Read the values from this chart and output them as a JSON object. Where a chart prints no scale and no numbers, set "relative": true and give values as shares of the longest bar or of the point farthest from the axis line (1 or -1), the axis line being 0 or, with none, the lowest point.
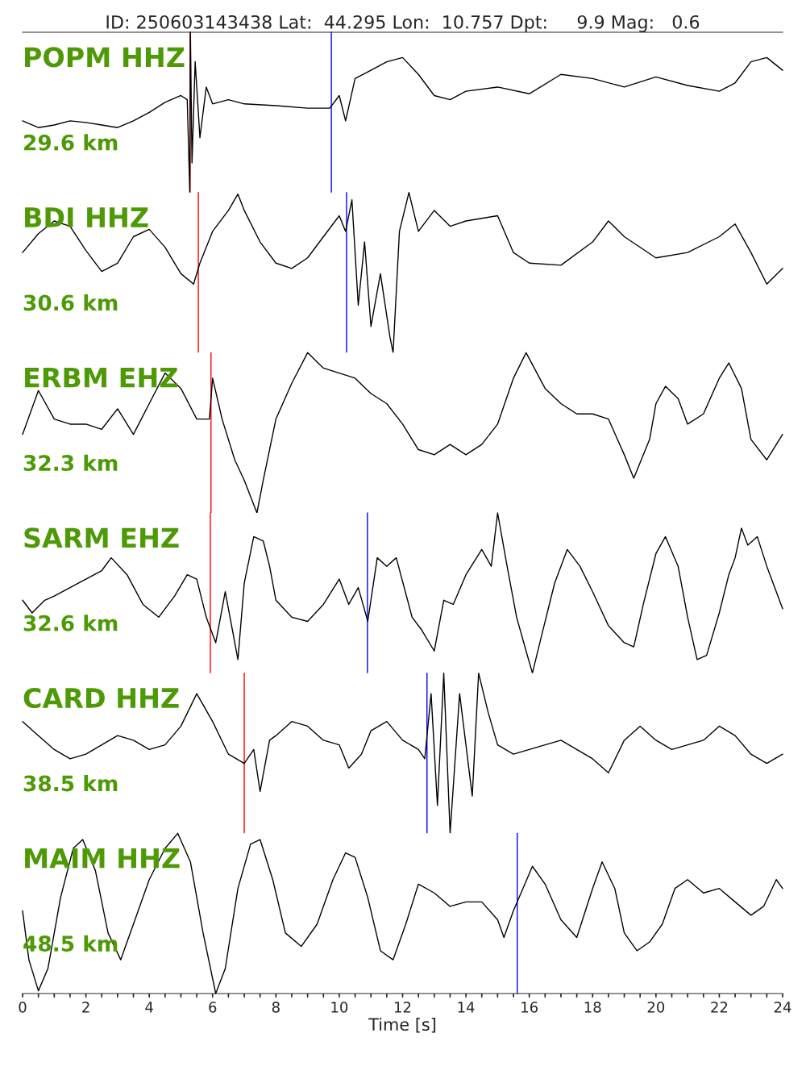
{
  "chart_data": [
    {
      "type": "line",
      "title": "ID: 250603143438 Lat:  44.295 Lon:  10.757 Dpt:     9.9 Mag:   0.6",
      "relative": true,
      "xlim": [
        0,
        24
      ],
      "tick_labels": false,
      "annotations": [
        "POPM HHZ",
        "29.6 km"
      ],
      "x": [
        0,
        0.5,
        1,
        1.5,
        2,
        2.5,
        3,
        3.5,
        4,
        4.5,
        5,
        5.2,
        5.28,
        5.3,
        5.35,
        5.45,
        5.6,
        5.8,
        6,
        6.5,
        7,
        8,
        9,
        9.7,
        10,
        10.2,
        10.5,
        11,
        11.5,
        12,
        12.5,
        13,
        13.5,
        14,
        15,
        16,
        17,
        18,
        19,
        20,
        21,
        22,
        22.5,
        23,
        23.5,
        24
      ],
      "series": [
        {
          "color": "#000000",
          "values": [
            0.447,
            0.405,
            0.421,
            0.447,
            0.437,
            0.421,
            0.405,
            0.447,
            0.5,
            0.563,
            0.605,
            0.579,
            0,
            1,
            0.184,
            0.816,
            0.342,
            0.658,
            0.553,
            0.579,
            0.553,
            0.542,
            0.526,
            0.526,
            0.605,
            0.447,
            0.711,
            0.763,
            0.816,
            0.842,
            0.737,
            0.605,
            0.579,
            0.632,
            0.658,
            0.616,
            0.737,
            0.711,
            0.658,
            0.721,
            0.668,
            0.632,
            0.684,
            0.816,
            0.842,
            0.763
          ]
        }
      ],
      "ref_lines": [
        {
          "axis": "x",
          "value": 5.29,
          "color": "#ff0000"
        },
        {
          "axis": "x",
          "value": 9.75,
          "color": "#0000ff"
        }
      ]
    },
    {
      "type": "line",
      "relative": true,
      "xlim": [
        0,
        24
      ],
      "tick_labels": false,
      "annotations": [
        "BDI HHZ",
        "30.6 km"
      ],
      "x": [
        0,
        0.5,
        1,
        1.5,
        2,
        2.5,
        3,
        3.5,
        4,
        4.5,
        5,
        5.4,
        5.6,
        6,
        6.5,
        6.8,
        7,
        7.5,
        8,
        8.5,
        9,
        9.5,
        10,
        10.2,
        10.4,
        10.6,
        10.8,
        11,
        11.3,
        11.6,
        11.7,
        11.9,
        12.2,
        12.5,
        13,
        13.5,
        14,
        15,
        15.5,
        16,
        17,
        18,
        18.5,
        19,
        20,
        21,
        22,
        22.5,
        23,
        23.5,
        24
      ],
      "series": [
        {
          "color": "#000000",
          "values": [
            0.625,
            0.743,
            0.822,
            0.789,
            0.638,
            0.507,
            0.559,
            0.724,
            0.77,
            0.658,
            0.493,
            0.428,
            0.559,
            0.757,
            0.888,
            0.99,
            0.888,
            0.691,
            0.559,
            0.526,
            0.592,
            0.724,
            0.855,
            0.757,
            0.954,
            0.296,
            0.691,
            0.164,
            0.493,
            0.099,
            0,
            0.757,
            1,
            0.757,
            0.888,
            0.789,
            0.822,
            0.855,
            0.625,
            0.559,
            0.546,
            0.691,
            0.822,
            0.724,
            0.592,
            0.625,
            0.724,
            0.803,
            0.625,
            0.428,
            0.526
          ]
        }
      ],
      "ref_lines": [
        {
          "axis": "x",
          "value": 5.55,
          "color": "#ff0000"
        },
        {
          "axis": "x",
          "value": 10.23,
          "color": "#0000ff"
        }
      ]
    },
    {
      "type": "line",
      "relative": true,
      "xlim": [
        0,
        24
      ],
      "tick_labels": false,
      "annotations": [
        "ERBM EHZ",
        "32.3 km"
      ],
      "x": [
        0,
        0.5,
        1,
        1.5,
        2,
        2.5,
        3,
        3.5,
        4,
        4.5,
        5,
        5.5,
        5.9,
        6,
        6.3,
        6.7,
        7,
        7.4,
        7.6,
        8,
        8.5,
        9,
        9.5,
        10,
        10.5,
        11,
        11.5,
        12,
        12.5,
        13,
        13.5,
        14,
        14.5,
        15,
        15.5,
        15.9,
        16.5,
        17,
        17.5,
        18,
        18.5,
        19,
        19.3,
        19.8,
        20,
        20.3,
        20.7,
        21,
        21.5,
        22,
        22.3,
        22.7,
        23,
        23.5,
        24
      ],
      "series": [
        {
          "color": "#000000",
          "values": [
            0.49,
            0.764,
            0.586,
            0.554,
            0.554,
            0.522,
            0.65,
            0.49,
            0.682,
            0.873,
            0.777,
            0.586,
            0.586,
            0.841,
            0.586,
            0.331,
            0.204,
            0,
            0.204,
            0.586,
            0.809,
            1,
            0.904,
            0.873,
            0.841,
            0.745,
            0.682,
            0.554,
            0.395,
            0.363,
            0.427,
            0.363,
            0.427,
            0.554,
            0.841,
            1,
            0.777,
            0.682,
            0.618,
            0.618,
            0.586,
            0.363,
            0.217,
            0.459,
            0.682,
            0.79,
            0.713,
            0.554,
            0.618,
            0.841,
            0.936,
            0.777,
            0.459,
            0.331,
            0.49
          ]
        }
      ],
      "ref_lines": [
        {
          "axis": "x",
          "value": 5.95,
          "color": "#ff0000"
        }
      ]
    },
    {
      "type": "line",
      "relative": true,
      "xlim": [
        0,
        24
      ],
      "tick_labels": false,
      "annotations": [
        "SARM EHZ",
        "32.6 km"
      ],
      "x": [
        0,
        0.3,
        0.7,
        1,
        1.5,
        2,
        2.5,
        2.8,
        3.3,
        3.8,
        4.3,
        4.8,
        5.2,
        5.5,
        5.8,
        6.1,
        6.4,
        6.8,
        7,
        7.3,
        7.6,
        7.8,
        8,
        8.5,
        9,
        9.5,
        10,
        10.3,
        10.6,
        10.9,
        11.2,
        11.5,
        11.8,
        12.3,
        12.6,
        13,
        13.3,
        13.6,
        14,
        14.5,
        14.8,
        15,
        15.3,
        15.6,
        15.9,
        16.1,
        16.4,
        16.8,
        17.2,
        17.6,
        18,
        18.5,
        19,
        19.3,
        19.6,
        20,
        20.3,
        20.7,
        21,
        21.3,
        21.6,
        22,
        22.3,
        22.5,
        22.7,
        22.9,
        23.2,
        23.5,
        24
      ],
      "series": [
        {
          "color": "#000000",
          "values": [
            0.455,
            0.376,
            0.455,
            0.481,
            0.534,
            0.587,
            0.64,
            0.72,
            0.614,
            0.429,
            0.349,
            0.481,
            0.614,
            0.587,
            0.349,
            0.19,
            0.508,
            0.085,
            0.561,
            0.852,
            0.825,
            0.667,
            0.455,
            0.349,
            0.323,
            0.429,
            0.587,
            0.429,
            0.534,
            0.323,
            0.72,
            0.667,
            0.72,
            0.349,
            0.27,
            0.138,
            0.455,
            0.429,
            0.614,
            0.772,
            0.667,
            1,
            0.667,
            0.349,
            0.138,
            0,
            0.243,
            0.561,
            0.772,
            0.667,
            0.508,
            0.296,
            0.19,
            0.164,
            0.429,
            0.746,
            0.852,
            0.667,
            0.349,
            0.085,
            0.111,
            0.376,
            0.614,
            0.72,
            0.905,
            0.799,
            0.852,
            0.667,
            0.402
          ]
        }
      ],
      "ref_lines": [
        {
          "axis": "x",
          "value": 5.93,
          "color": "#ff0000"
        },
        {
          "axis": "x",
          "value": 10.89,
          "color": "#0000ff"
        }
      ]
    },
    {
      "type": "line",
      "relative": true,
      "xlim": [
        0,
        24
      ],
      "tick_labels": false,
      "annotations": [
        "CARD HHZ",
        "38.5 km"
      ],
      "x": [
        0,
        0.5,
        1,
        1.5,
        2,
        2.5,
        3,
        3.5,
        4,
        4.5,
        5,
        5.5,
        6,
        6.5,
        7,
        7.3,
        7.5,
        7.8,
        8,
        8.5,
        9,
        9.5,
        10,
        10.3,
        10.7,
        11,
        11.5,
        12,
        12.5,
        12.7,
        12.9,
        13.1,
        13.3,
        13.5,
        13.8,
        14.2,
        14.4,
        14.7,
        15,
        15.5,
        16,
        16.5,
        17,
        17.5,
        18,
        18.5,
        19,
        19.5,
        20,
        20.5,
        21,
        21.5,
        22,
        22.5,
        23,
        23.5,
        24
      ],
      "series": [
        {
          "color": "#000000",
          "values": [
            0.698,
            0.61,
            0.523,
            0.465,
            0.494,
            0.552,
            0.61,
            0.581,
            0.523,
            0.552,
            0.669,
            0.872,
            0.698,
            0.494,
            0.436,
            0.523,
            0.262,
            0.581,
            0.61,
            0.698,
            0.669,
            0.581,
            0.552,
            0.407,
            0.494,
            0.64,
            0.698,
            0.581,
            0.523,
            0.465,
            0.872,
            0.174,
            1,
            0,
            0.872,
            0.233,
            1,
            0.756,
            0.552,
            0.494,
            0.523,
            0.552,
            0.581,
            0.523,
            0.465,
            0.378,
            0.581,
            0.669,
            0.581,
            0.523,
            0.552,
            0.581,
            0.669,
            0.61,
            0.494,
            0.436,
            0.494
          ]
        }
      ],
      "ref_lines": [
        {
          "axis": "x",
          "value": 7.0,
          "color": "#ff0000"
        },
        {
          "axis": "x",
          "value": 12.77,
          "color": "#0000ff"
        }
      ]
    },
    {
      "type": "line",
      "relative": true,
      "xlim": [
        0,
        24
      ],
      "tick_labels": "x",
      "xlabel": "Time [s]",
      "annotations": [
        "MAIM HHZ",
        "48.5 km"
      ],
      "xticks": [
        0,
        {
          "value": 0.5,
          "label": null
        },
        {
          "value": 1,
          "label": null
        },
        {
          "value": 1.5,
          "label": null
        },
        2,
        {
          "value": 2.5,
          "label": null
        },
        {
          "value": 3,
          "label": null
        },
        {
          "value": 3.5,
          "label": null
        },
        4,
        {
          "value": 4.5,
          "label": null
        },
        {
          "value": 5,
          "label": null
        },
        {
          "value": 5.5,
          "label": null
        },
        6,
        {
          "value": 6.5,
          "label": null
        },
        {
          "value": 7,
          "label": null
        },
        {
          "value": 7.5,
          "label": null
        },
        8,
        {
          "value": 8.5,
          "label": null
        },
        {
          "value": 9,
          "label": null
        },
        {
          "value": 9.5,
          "label": null
        },
        10,
        {
          "value": 10.5,
          "label": null
        },
        {
          "value": 11,
          "label": null
        },
        {
          "value": 11.5,
          "label": null
        },
        12,
        {
          "value": 12.5,
          "label": null
        },
        {
          "value": 13,
          "label": null
        },
        {
          "value": 13.5,
          "label": null
        },
        14,
        {
          "value": 14.5,
          "label": null
        },
        {
          "value": 15,
          "label": null
        },
        {
          "value": 15.5,
          "label": null
        },
        16,
        {
          "value": 16.5,
          "label": null
        },
        {
          "value": 17,
          "label": null
        },
        {
          "value": 17.5,
          "label": null
        },
        18,
        {
          "value": 18.5,
          "label": null
        },
        {
          "value": 19,
          "label": null
        },
        {
          "value": 19.5,
          "label": null
        },
        20,
        {
          "value": 20.5,
          "label": null
        },
        {
          "value": 21,
          "label": null
        },
        {
          "value": 21.5,
          "label": null
        },
        22,
        {
          "value": 22.5,
          "label": null
        },
        {
          "value": 23,
          "label": null
        },
        {
          "value": 23.5,
          "label": null
        },
        24
      ],
      "x": [
        0,
        0.2,
        0.5,
        0.8,
        1.2,
        1.6,
        1.9,
        2.3,
        2.7,
        3.1,
        3.5,
        4,
        4.5,
        4.9,
        5.3,
        5.7,
        6.1,
        6.4,
        6.8,
        7.2,
        7.5,
        7.9,
        8.3,
        8.8,
        9.3,
        9.8,
        10.2,
        10.5,
        10.9,
        11.3,
        11.7,
        12.1,
        12.5,
        13,
        13.5,
        14,
        14.5,
        15,
        15.2,
        15.5,
        15.8,
        16.1,
        16.5,
        17,
        17.5,
        18,
        18.3,
        18.7,
        19,
        19.4,
        19.8,
        20.2,
        20.6,
        21,
        21.5,
        22,
        22.5,
        23,
        23.4,
        23.8,
        24
      ],
      "series": [
        {
          "color": "#000000",
          "values": [
            0.517,
            0.211,
            0.017,
            0.156,
            0.6,
            0.906,
            0.961,
            0.767,
            0.378,
            0.211,
            0.433,
            0.711,
            0.906,
            1,
            0.822,
            0.378,
            0,
            0.156,
            0.656,
            0.933,
            0.961,
            0.711,
            0.378,
            0.294,
            0.433,
            0.711,
            0.878,
            0.85,
            0.6,
            0.267,
            0.211,
            0.433,
            0.683,
            0.628,
            0.544,
            0.572,
            0.572,
            0.461,
            0.35,
            0.517,
            0.656,
            0.794,
            0.683,
            0.461,
            0.35,
            0.656,
            0.822,
            0.656,
            0.378,
            0.267,
            0.322,
            0.433,
            0.656,
            0.711,
            0.628,
            0.656,
            0.572,
            0.489,
            0.544,
            0.711,
            0.656
          ]
        }
      ],
      "ref_lines": [
        {
          "axis": "x",
          "value": 15.62,
          "color": "#0000ff"
        }
      ]
    }
  ]
}
